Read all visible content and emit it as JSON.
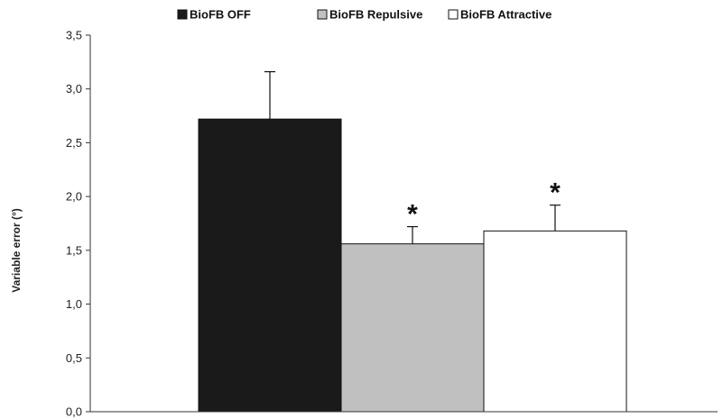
{
  "chart_data": {
    "type": "bar",
    "title": "",
    "xlabel": "",
    "ylabel": "Variable error (°)",
    "ylim": [
      0,
      3.5
    ],
    "yticks": [
      0,
      0.5,
      1,
      1.5,
      2,
      2.5,
      3,
      3.5
    ],
    "ytick_labels": [
      "0,0",
      "0,5",
      "1,0",
      "1,5",
      "2,0",
      "2,5",
      "3,0",
      "3,5"
    ],
    "grid": false,
    "legend_position": "top",
    "series": [
      {
        "name": "BioFB OFF",
        "value": 2.72,
        "error": 0.44,
        "color": "#1a1a1a",
        "annotation": ""
      },
      {
        "name": "BioFB Repulsive",
        "value": 1.56,
        "error": 0.16,
        "color": "#c0c0c0",
        "annotation": "*"
      },
      {
        "name": "BioFB Attractive",
        "value": 1.68,
        "error": 0.24,
        "color": "#ffffff",
        "annotation": "*"
      }
    ]
  }
}
